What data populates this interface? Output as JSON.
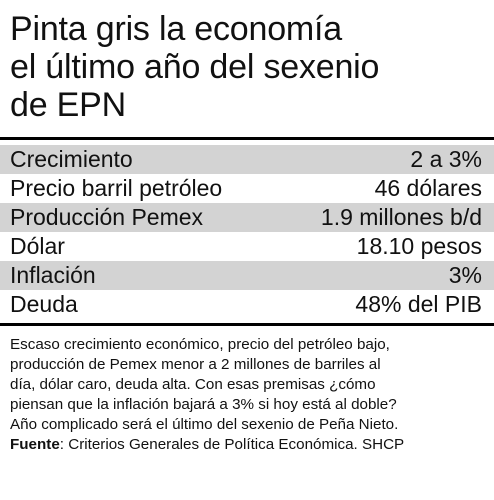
{
  "header": {
    "title_lines": [
      "Pinta gris la economía",
      "el último año del sexenio",
      "de EPN"
    ]
  },
  "table": {
    "rows": [
      {
        "label": "Crecimiento",
        "value": "2 a 3%"
      },
      {
        "label": "Precio barril petróleo",
        "value": "46 dólares"
      },
      {
        "label": "Producción Pemex",
        "value": "1.9 millones b/d"
      },
      {
        "label": "Dólar",
        "value": "18.10 pesos"
      },
      {
        "label": "Inflación",
        "value": "3%"
      },
      {
        "label": "Deuda",
        "value": "48% del PIB"
      }
    ]
  },
  "note": {
    "lines": [
      "Escaso crecimiento económico, precio del petróleo bajo,",
      "producción de Pemex menor a 2 millones de barriles al",
      "día, dólar caro, deuda alta. Con esas premisas ¿cómo",
      "piensan que la inflación bajará a 3% si hoy está al doble?",
      "Año complicado será el último del sexenio de Peña Nieto."
    ],
    "source_label": "Fuente",
    "source_text": ": Criterios Generales de Política Económica. SHCP"
  },
  "colors": {
    "row_shade": "#d3d3d3",
    "rule": "#000000",
    "text": "#111111"
  }
}
